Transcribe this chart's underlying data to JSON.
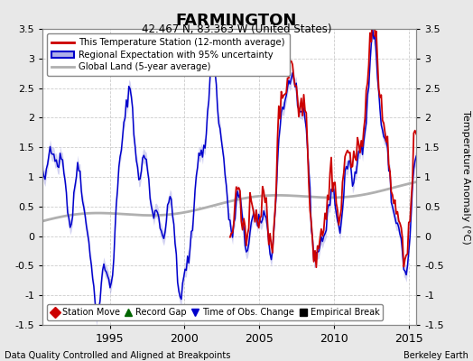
{
  "title": "FARMINGTON",
  "subtitle": "42.467 N, 83.363 W (United States)",
  "xlabel_left": "Data Quality Controlled and Aligned at Breakpoints",
  "xlabel_right": "Berkeley Earth",
  "ylabel": "Temperature Anomaly (°C)",
  "ylim": [
    -1.5,
    3.5
  ],
  "yticks": [
    -1.5,
    -1.0,
    -0.5,
    0,
    0.5,
    1.0,
    1.5,
    2.0,
    2.5,
    3.0,
    3.5
  ],
  "xlim": [
    1990.5,
    2015.5
  ],
  "xticks": [
    1995,
    2000,
    2005,
    2010,
    2015
  ],
  "bg_color": "#e8e8e8",
  "plot_bg": "#ffffff",
  "red_color": "#cc0000",
  "blue_color": "#0000cc",
  "blue_fill": "#b0b0e8",
  "gray_color": "#b0b0b0",
  "legend_items": [
    "This Temperature Station (12-month average)",
    "Regional Expectation with 95% uncertainty",
    "Global Land (5-year average)"
  ],
  "marker_legend": [
    {
      "label": "Station Move",
      "color": "#cc0000",
      "marker": "D"
    },
    {
      "label": "Record Gap",
      "color": "#006600",
      "marker": "^"
    },
    {
      "label": "Time of Obs. Change",
      "color": "#0000cc",
      "marker": "v"
    },
    {
      "label": "Empirical Break",
      "color": "#000000",
      "marker": "s"
    }
  ]
}
